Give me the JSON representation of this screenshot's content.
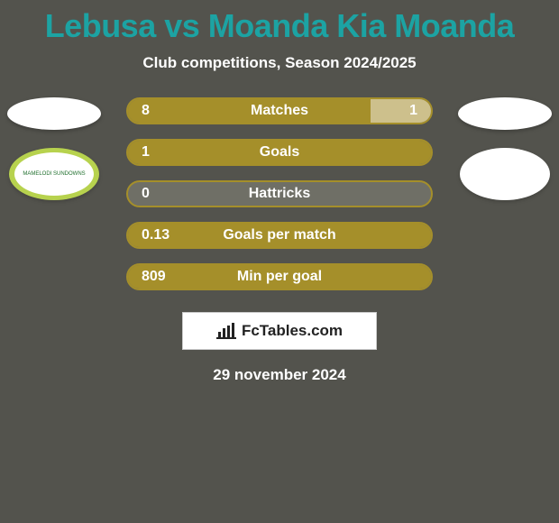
{
  "background_color": "#53534d",
  "title": {
    "text": "Lebusa vs Moanda Kia Moanda",
    "color": "#1ca3a3",
    "fontsize": 36
  },
  "subtitle": {
    "text": "Club competitions, Season 2024/2025",
    "color": "#ffffff",
    "fontsize": 17
  },
  "player_left": {
    "avatar_color": "#ffffff",
    "club": {
      "ring_outer": "#b7d24e",
      "ring_inner": "#e6c24a",
      "center": "#ffffff",
      "text": "MAMELODI\\nSUNDOWNS",
      "text_color": "#1f6f2d"
    }
  },
  "player_right": {
    "avatar_color": "#ffffff",
    "club": {
      "ring_outer": "#ffffff",
      "ring_inner": "#ffffff",
      "center": "#ffffff",
      "text": "",
      "text_color": "#777777"
    }
  },
  "bar_style": {
    "height": 30,
    "radius": 15,
    "label_fontsize": 16,
    "value_fontsize": 16,
    "label_color": "#ffffff",
    "value_color": "#ffffff",
    "border_color": "#a58f2a",
    "border_width": 2,
    "row_gap": 16,
    "right_fill_default": "#6f6f66"
  },
  "stats": [
    {
      "label": "Matches",
      "left_value": "8",
      "right_value": "1",
      "left_pct": 80,
      "right_pct": 20,
      "left_color": "#a58f2a",
      "right_color": "#cdc08c",
      "show_right_value": true
    },
    {
      "label": "Goals",
      "left_value": "1",
      "right_value": "",
      "left_pct": 100,
      "right_pct": 0,
      "left_color": "#a58f2a",
      "right_color": "#6f6f66",
      "show_right_value": false
    },
    {
      "label": "Hattricks",
      "left_value": "0",
      "right_value": "",
      "left_pct": 0,
      "right_pct": 100,
      "left_color": "#a58f2a",
      "right_color": "#6f6f66",
      "show_right_value": false
    },
    {
      "label": "Goals per match",
      "left_value": "0.13",
      "right_value": "",
      "left_pct": 100,
      "right_pct": 0,
      "left_color": "#a58f2a",
      "right_color": "#6f6f66",
      "show_right_value": false
    },
    {
      "label": "Min per goal",
      "left_value": "809",
      "right_value": "",
      "left_pct": 100,
      "right_pct": 0,
      "left_color": "#a58f2a",
      "right_color": "#6f6f66",
      "show_right_value": false
    }
  ],
  "brand": {
    "text": "FcTables.com",
    "bg": "#ffffff",
    "border": "#cccccc",
    "text_color": "#222222",
    "icon_color": "#222222"
  },
  "date": {
    "text": "29 november 2024",
    "color": "#ffffff",
    "fontsize": 17
  }
}
